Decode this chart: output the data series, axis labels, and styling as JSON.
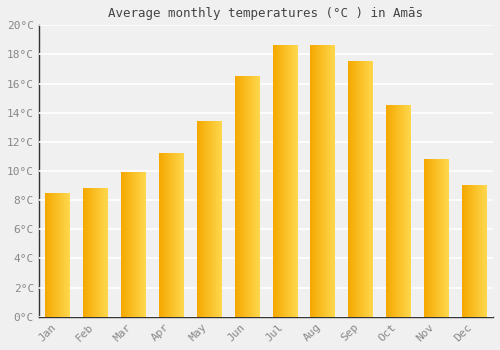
{
  "title": "Average monthly temperatures (°C ) in Amās",
  "months": [
    "Jan",
    "Feb",
    "Mar",
    "Apr",
    "May",
    "Jun",
    "Jul",
    "Aug",
    "Sep",
    "Oct",
    "Nov",
    "Dec"
  ],
  "values": [
    8.5,
    8.8,
    9.9,
    11.2,
    13.4,
    16.5,
    18.6,
    18.6,
    17.5,
    14.5,
    10.8,
    9.0
  ],
  "bar_color_left": "#F5A800",
  "bar_color_right": "#FFD84D",
  "ylim": [
    0,
    20
  ],
  "yticks": [
    0,
    2,
    4,
    6,
    8,
    10,
    12,
    14,
    16,
    18,
    20
  ],
  "ytick_labels": [
    "0°C",
    "2°C",
    "4°C",
    "6°C",
    "8°C",
    "10°C",
    "12°C",
    "14°C",
    "16°C",
    "18°C",
    "20°C"
  ],
  "background_color": "#f0f0f0",
  "grid_color": "#ffffff",
  "title_fontsize": 9,
  "tick_fontsize": 8,
  "bar_width": 0.65
}
